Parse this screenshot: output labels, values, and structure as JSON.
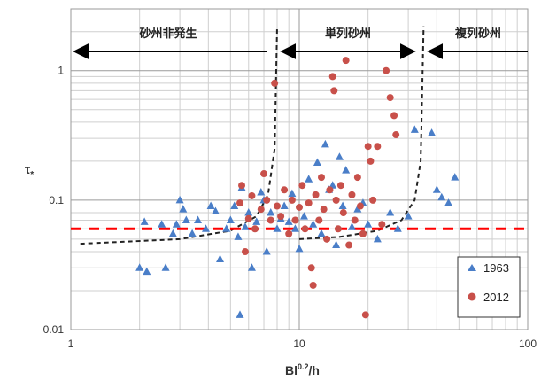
{
  "chart_data": {
    "type": "scatter",
    "xscale": "log",
    "yscale": "log",
    "xlim": [
      1,
      100
    ],
    "ylim": [
      0.01,
      3
    ],
    "xticks": [
      "1",
      "10",
      "100"
    ],
    "yticks": [
      "0.01",
      "0.1",
      "1"
    ],
    "xlabel_main": "Bl",
    "xlabel_sup": "0.2",
    "xlabel_tail": "/h",
    "ylabel_main": "τ",
    "ylabel_sub": "*",
    "grid": true,
    "legend_position": "bottom-right",
    "regions": [
      {
        "label": "砂州非発生",
        "arrow": "left"
      },
      {
        "label": "単列砂州",
        "arrow": "both"
      },
      {
        "label": "複列砂州",
        "arrow": "left"
      }
    ],
    "boundaries": [
      {
        "name": "left-boundary",
        "points": [
          [
            1.1,
            0.046
          ],
          [
            3,
            0.05
          ],
          [
            5,
            0.058
          ],
          [
            6.5,
            0.075
          ],
          [
            7.3,
            0.11
          ],
          [
            7.8,
            0.25
          ],
          [
            8.0,
            2.2
          ]
        ]
      },
      {
        "name": "right-boundary",
        "points": [
          [
            10,
            0.05
          ],
          [
            15,
            0.052
          ],
          [
            22,
            0.058
          ],
          [
            28,
            0.07
          ],
          [
            32,
            0.1
          ],
          [
            34,
            0.2
          ],
          [
            35,
            2.2
          ]
        ]
      }
    ],
    "reference_line": {
      "y": 0.06,
      "color": "#ff0000"
    },
    "series": [
      {
        "name": "1963",
        "marker": "triangle",
        "color": "#4a7ec8",
        "points": [
          [
            2.0,
            0.03
          ],
          [
            2.1,
            0.068
          ],
          [
            2.15,
            0.028
          ],
          [
            2.5,
            0.065
          ],
          [
            2.6,
            0.03
          ],
          [
            2.8,
            0.055
          ],
          [
            2.9,
            0.065
          ],
          [
            3.0,
            0.1
          ],
          [
            3.1,
            0.085
          ],
          [
            3.2,
            0.07
          ],
          [
            3.4,
            0.055
          ],
          [
            3.6,
            0.07
          ],
          [
            3.9,
            0.06
          ],
          [
            4.1,
            0.09
          ],
          [
            4.3,
            0.082
          ],
          [
            4.5,
            0.035
          ],
          [
            4.8,
            0.06
          ],
          [
            5.0,
            0.07
          ],
          [
            5.2,
            0.09
          ],
          [
            5.4,
            0.052
          ],
          [
            5.5,
            0.013
          ],
          [
            5.6,
            0.125
          ],
          [
            5.8,
            0.062
          ],
          [
            6.0,
            0.08
          ],
          [
            6.2,
            0.03
          ],
          [
            6.5,
            0.068
          ],
          [
            6.8,
            0.115
          ],
          [
            7.0,
            0.1
          ],
          [
            7.2,
            0.04
          ],
          [
            7.5,
            0.08
          ],
          [
            8.0,
            0.06
          ],
          [
            8.3,
            0.072
          ],
          [
            8.6,
            0.09
          ],
          [
            9.0,
            0.068
          ],
          [
            9.3,
            0.112
          ],
          [
            9.6,
            0.06
          ],
          [
            10.0,
            0.042
          ],
          [
            10.5,
            0.075
          ],
          [
            11.0,
            0.145
          ],
          [
            11.5,
            0.065
          ],
          [
            12.0,
            0.195
          ],
          [
            12.5,
            0.055
          ],
          [
            13.0,
            0.27
          ],
          [
            13.5,
            0.12
          ],
          [
            14.0,
            0.13
          ],
          [
            14.5,
            0.045
          ],
          [
            15.0,
            0.215
          ],
          [
            15.5,
            0.09
          ],
          [
            16.0,
            0.17
          ],
          [
            17.0,
            0.062
          ],
          [
            18.0,
            0.085
          ],
          [
            19.0,
            0.095
          ],
          [
            20.0,
            0.065
          ],
          [
            22.0,
            0.05
          ],
          [
            25.0,
            0.08
          ],
          [
            27.0,
            0.06
          ],
          [
            30.0,
            0.075
          ],
          [
            32.0,
            0.35
          ],
          [
            38.0,
            0.33
          ],
          [
            40.0,
            0.12
          ],
          [
            42.0,
            0.105
          ],
          [
            45.0,
            0.095
          ],
          [
            48.0,
            0.15
          ]
        ]
      },
      {
        "name": "2012",
        "marker": "circle",
        "color": "#c8504a",
        "points": [
          [
            5.5,
            0.095
          ],
          [
            5.6,
            0.13
          ],
          [
            5.8,
            0.04
          ],
          [
            6.0,
            0.072
          ],
          [
            6.2,
            0.108
          ],
          [
            6.4,
            0.06
          ],
          [
            6.8,
            0.085
          ],
          [
            7.0,
            0.16
          ],
          [
            7.2,
            0.1
          ],
          [
            7.5,
            0.07
          ],
          [
            7.8,
            0.8
          ],
          [
            8.0,
            0.09
          ],
          [
            8.3,
            0.075
          ],
          [
            8.6,
            0.12
          ],
          [
            9.0,
            0.055
          ],
          [
            9.3,
            0.1
          ],
          [
            9.6,
            0.07
          ],
          [
            10.0,
            0.088
          ],
          [
            10.3,
            0.13
          ],
          [
            10.6,
            0.06
          ],
          [
            11.0,
            0.095
          ],
          [
            11.3,
            0.03
          ],
          [
            11.5,
            0.022
          ],
          [
            11.8,
            0.11
          ],
          [
            12.2,
            0.07
          ],
          [
            12.5,
            0.15
          ],
          [
            12.8,
            0.085
          ],
          [
            13.2,
            0.05
          ],
          [
            13.6,
            0.12
          ],
          [
            14.0,
            0.9
          ],
          [
            14.2,
            0.7
          ],
          [
            14.5,
            0.1
          ],
          [
            14.8,
            0.06
          ],
          [
            15.2,
            0.13
          ],
          [
            15.6,
            0.08
          ],
          [
            16.0,
            1.2
          ],
          [
            16.5,
            0.045
          ],
          [
            17.0,
            0.11
          ],
          [
            17.5,
            0.07
          ],
          [
            18.0,
            0.15
          ],
          [
            18.5,
            0.09
          ],
          [
            19.0,
            0.055
          ],
          [
            19.5,
            0.013
          ],
          [
            20.0,
            0.26
          ],
          [
            20.5,
            0.2
          ],
          [
            21.0,
            0.1
          ],
          [
            22.0,
            0.26
          ],
          [
            23.0,
            0.065
          ],
          [
            24.0,
            1.0
          ],
          [
            25.0,
            0.62
          ],
          [
            26.0,
            0.45
          ],
          [
            26.5,
            0.32
          ]
        ]
      }
    ]
  }
}
